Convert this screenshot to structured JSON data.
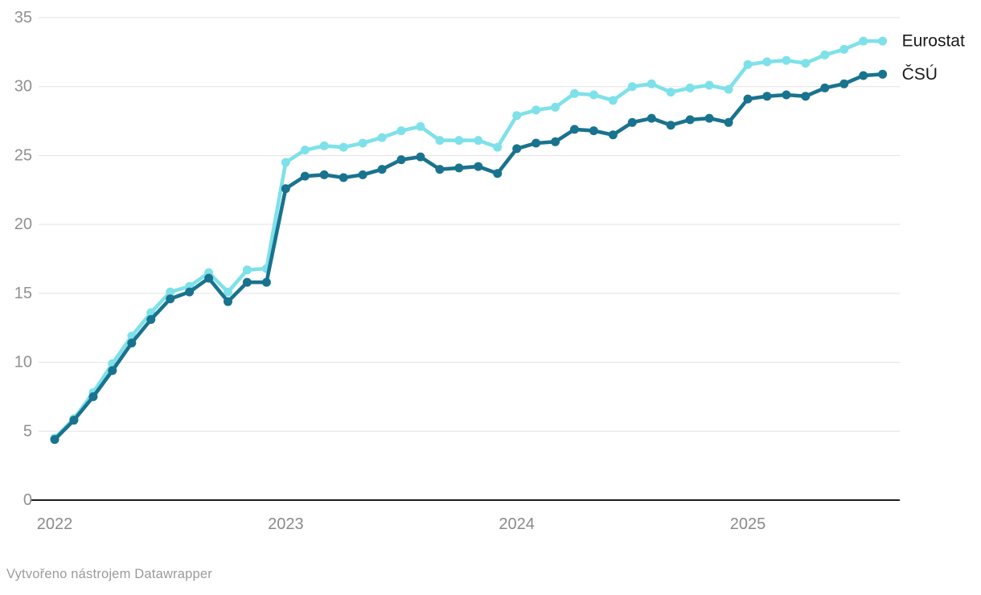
{
  "page": {
    "background": "#ffffff"
  },
  "footer": {
    "attribution": "Vytvořeno nástrojem Datawrapper"
  },
  "colors": {
    "eurostat_line": "#7ee1e9",
    "csu_line": "#19738e",
    "gridline": "#e3e3e3",
    "axis_baseline": "#1d1d1d",
    "y_tick_label": "#909090",
    "x_tick_label": "#8a8a8a",
    "legend_text": "#1a1a1a",
    "attribution_text": "#9b9b9b"
  },
  "chart_data": {
    "type": "line",
    "title": "",
    "xlabel": "",
    "ylabel": "",
    "x_unit": "month",
    "x_start": "2022-01",
    "x_end": "2025-08",
    "x_tick_labels": [
      "2022",
      "2023",
      "2024",
      "2025"
    ],
    "x_tick_month_indices": [
      0,
      12,
      24,
      36
    ],
    "y_ticks": [
      0,
      5,
      10,
      15,
      20,
      25,
      30,
      35
    ],
    "ylim": [
      0,
      35
    ],
    "grid": "horizontal",
    "legend_position": "right of line ends",
    "series": [
      {
        "id": "eurostat",
        "name": "Eurostat",
        "color": "#7ee1e9",
        "values": [
          4.5,
          5.9,
          7.8,
          9.9,
          11.9,
          13.6,
          15.1,
          15.5,
          16.5,
          15.1,
          16.7,
          16.8,
          24.5,
          25.4,
          25.7,
          25.6,
          25.9,
          26.3,
          26.8,
          27.1,
          26.1,
          26.1,
          26.1,
          25.6,
          27.9,
          28.3,
          28.5,
          29.5,
          29.4,
          29.0,
          30.0,
          30.2,
          29.6,
          29.9,
          30.1,
          29.8,
          31.6,
          31.8,
          31.9,
          31.7,
          32.3,
          32.7,
          33.3,
          33.3
        ]
      },
      {
        "id": "csu",
        "name": "ČSÚ",
        "color": "#19738e",
        "values": [
          4.4,
          5.8,
          7.5,
          9.4,
          11.4,
          13.1,
          14.6,
          15.1,
          16.1,
          14.4,
          15.8,
          15.8,
          22.6,
          23.5,
          23.6,
          23.4,
          23.6,
          24.0,
          24.7,
          24.9,
          24.0,
          24.1,
          24.2,
          23.7,
          25.5,
          25.9,
          26.0,
          26.9,
          26.8,
          26.5,
          27.4,
          27.7,
          27.2,
          27.6,
          27.7,
          27.4,
          29.1,
          29.3,
          29.4,
          29.3,
          29.9,
          30.2,
          30.8,
          30.9
        ]
      }
    ]
  }
}
